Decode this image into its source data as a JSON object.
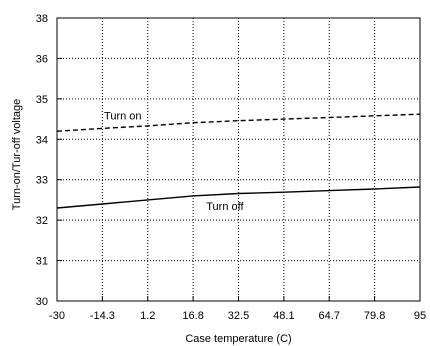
{
  "chart_data": {
    "type": "line",
    "title": "",
    "xlabel": "Case temperature (C)",
    "ylabel": "Turn-on/Tur-off voltage",
    "x_tick_labels": [
      "-30",
      "-14.3",
      "1.2",
      "16.8",
      "32.5",
      "48.1",
      "64.7",
      "79.8",
      "95"
    ],
    "yticks": [
      30,
      31,
      32,
      33,
      34,
      35,
      36,
      38
    ],
    "xlim": [
      0,
      8
    ],
    "ylim": [
      30,
      37
    ],
    "grid": true,
    "series": [
      {
        "name": "Turn on",
        "line_style": "dashed",
        "color": "#000000",
        "x": [
          0,
          1,
          2,
          3,
          4,
          5,
          6,
          7,
          8
        ],
        "y": [
          34.2,
          34.27,
          34.33,
          34.41,
          34.46,
          34.5,
          34.54,
          34.58,
          34.62
        ]
      },
      {
        "name": "Turn off",
        "line_style": "solid",
        "color": "#000000",
        "x": [
          0,
          1,
          2,
          3,
          4,
          5,
          6,
          7,
          8
        ],
        "y": [
          32.3,
          32.4,
          32.5,
          32.6,
          32.66,
          32.69,
          32.73,
          32.77,
          32.82
        ]
      }
    ]
  }
}
